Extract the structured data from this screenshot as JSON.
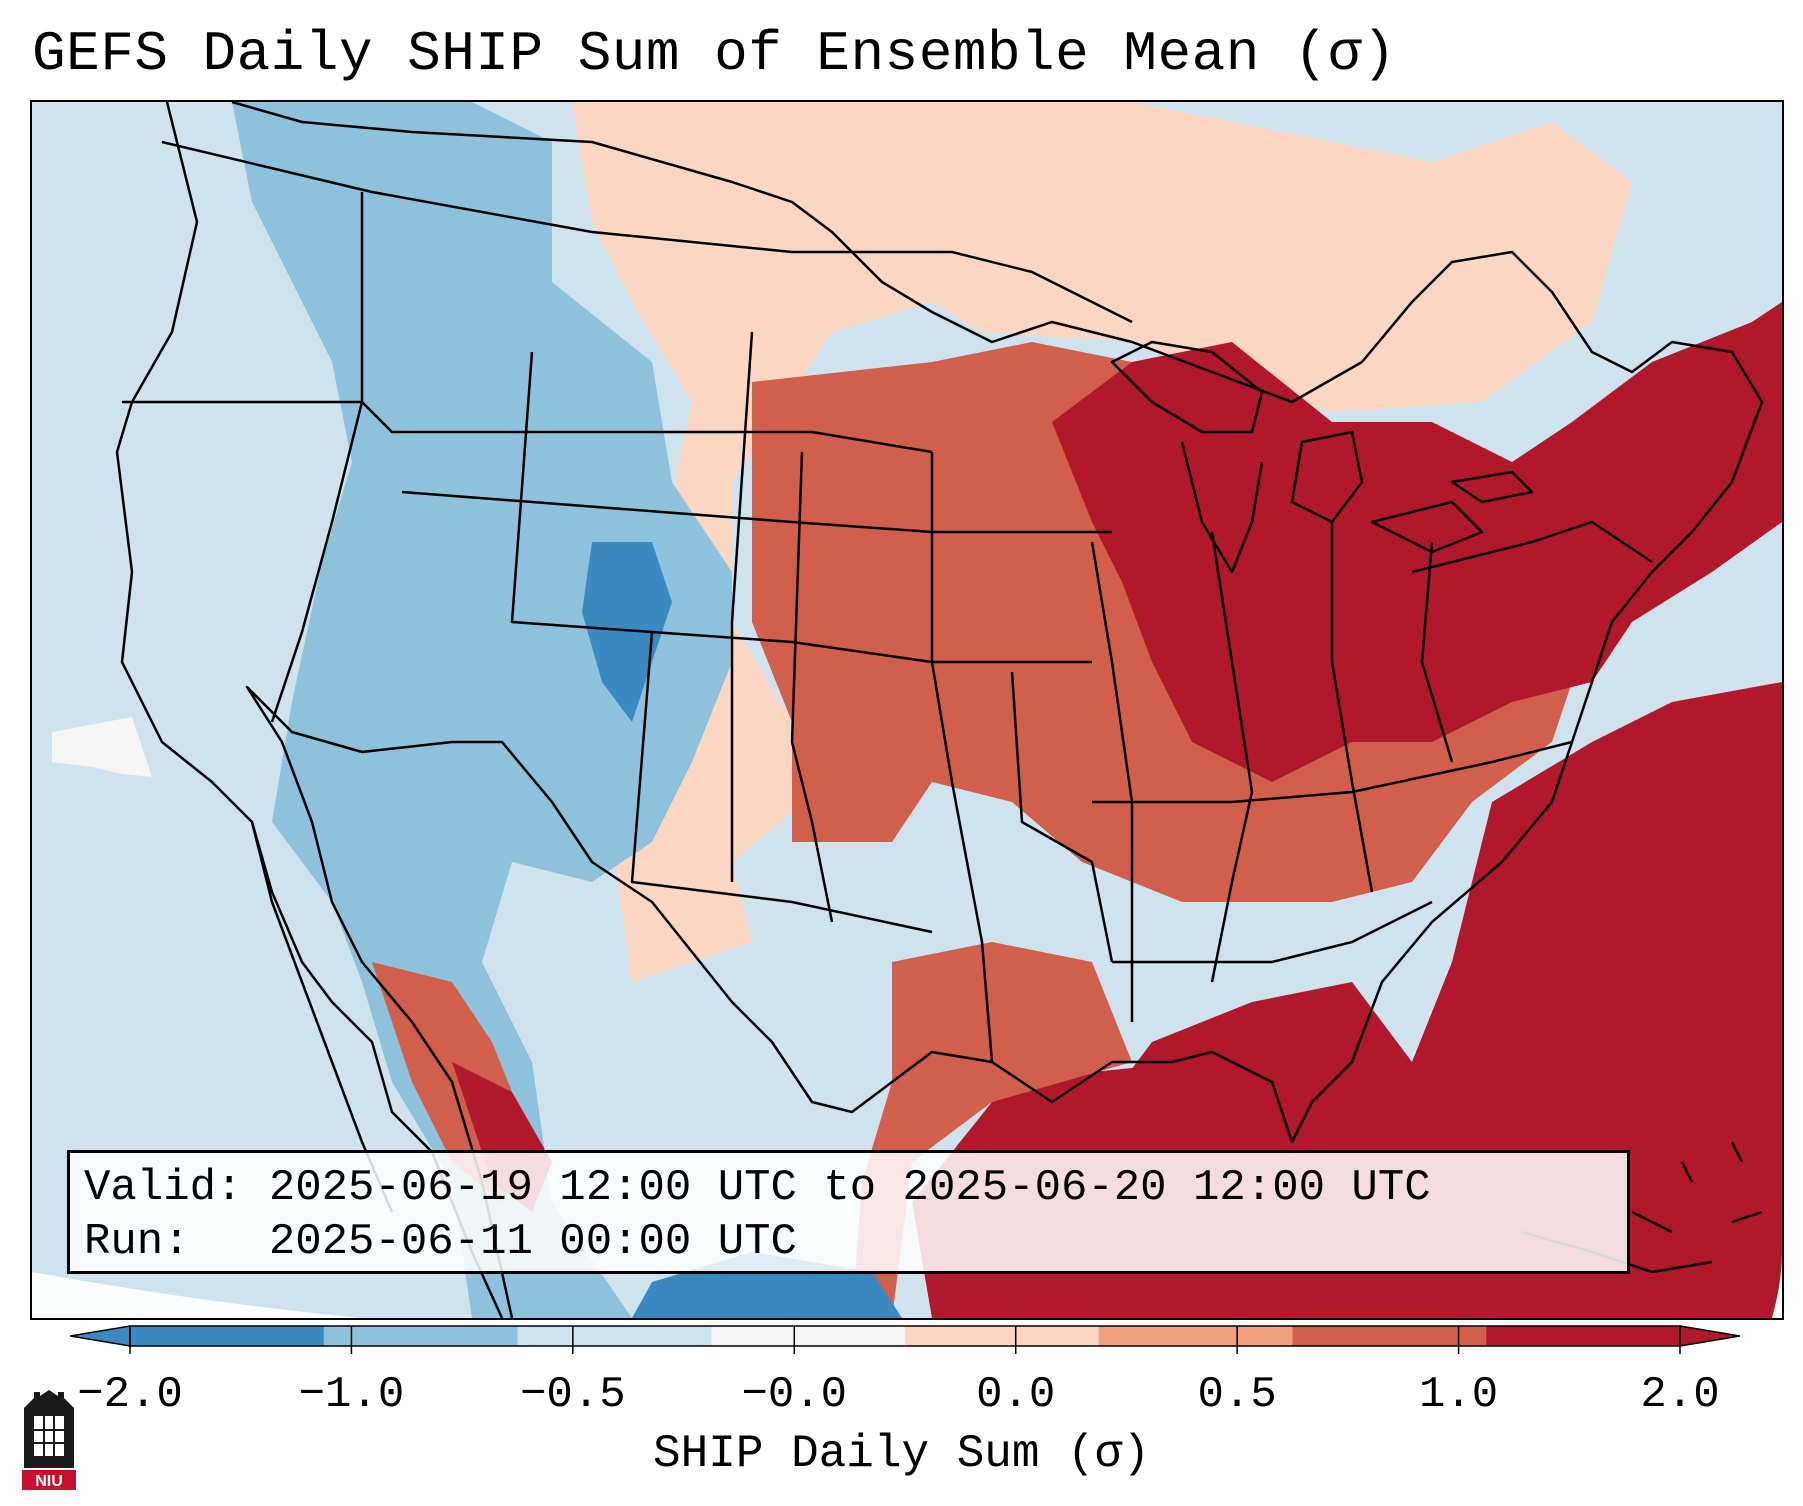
{
  "title": "GEFS Daily SHIP Sum of Ensemble Mean (σ)",
  "info": {
    "valid_label": "Valid:",
    "valid_value": "2025-06-19 12:00 UTC to 2025-06-20 12:00 UTC",
    "run_label": "Run:",
    "run_value": "2025-06-11 00:00 UTC"
  },
  "colorbar": {
    "label": "SHIP Daily Sum (σ)",
    "ticks": [
      "−2.0",
      "−1.0",
      "−0.5",
      "−0.0",
      "0.0",
      "0.5",
      "1.0",
      "2.0"
    ],
    "colors": [
      "#3a89c1",
      "#8ec1db",
      "#cde3ef",
      "#f5f5f5",
      "#fbd6c3",
      "#f0a07f",
      "#d25f4b",
      "#b2182b"
    ],
    "extend": "both"
  },
  "map": {
    "region": "Contiguous United States",
    "colors": {
      "ocean_neutral": "#cfe3ef",
      "light_blue": "#cde3ef",
      "mid_blue": "#8ec1db",
      "dark_blue": "#3a89c1",
      "light_red": "#fbd6c3",
      "mid_red": "#f0a07f",
      "red": "#d25f4b",
      "dark_red": "#b2182b"
    }
  },
  "logo": {
    "text": "NIU"
  }
}
